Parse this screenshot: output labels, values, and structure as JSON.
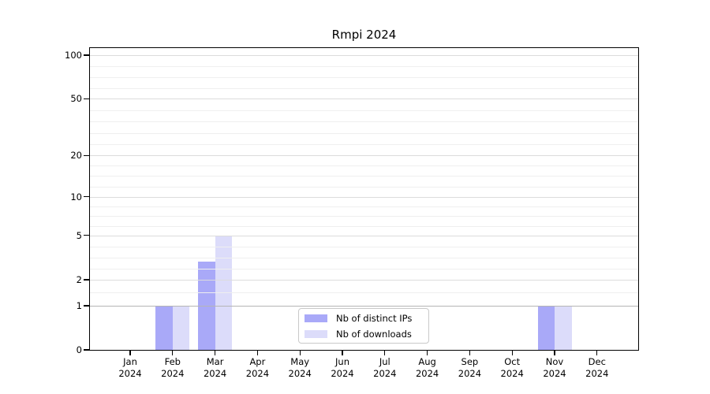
{
  "chart_data": {
    "type": "bar",
    "title": "Rmpi 2024",
    "categories": [
      "Jan",
      "Feb",
      "Mar",
      "Apr",
      "May",
      "Jun",
      "Jul",
      "Aug",
      "Sep",
      "Oct",
      "Nov",
      "Dec"
    ],
    "category_year": "2024",
    "series": [
      {
        "name": "Nb of distinct IPs",
        "color": "#a9a9f8",
        "values": [
          0,
          1,
          3,
          0,
          0,
          0,
          0,
          0,
          0,
          0,
          1,
          0
        ]
      },
      {
        "name": "Nb of downloads",
        "color": "#dcdcfa",
        "values": [
          0,
          1,
          5,
          0,
          0,
          0,
          0,
          0,
          0,
          0,
          1,
          0
        ]
      }
    ],
    "xlabel": "",
    "ylabel": "",
    "y_ticks": [
      0,
      1,
      2,
      5,
      10,
      20,
      50,
      100
    ],
    "ylim": [
      0,
      112
    ],
    "y_scale": "log1p",
    "grid": "horizontal",
    "legend_position": "lower center",
    "emphasized_gridline_value": 1,
    "gridline_colors": {
      "major": "#dcdcdc",
      "minor": "#efefef",
      "emphasized": "#b5b5b5"
    }
  }
}
